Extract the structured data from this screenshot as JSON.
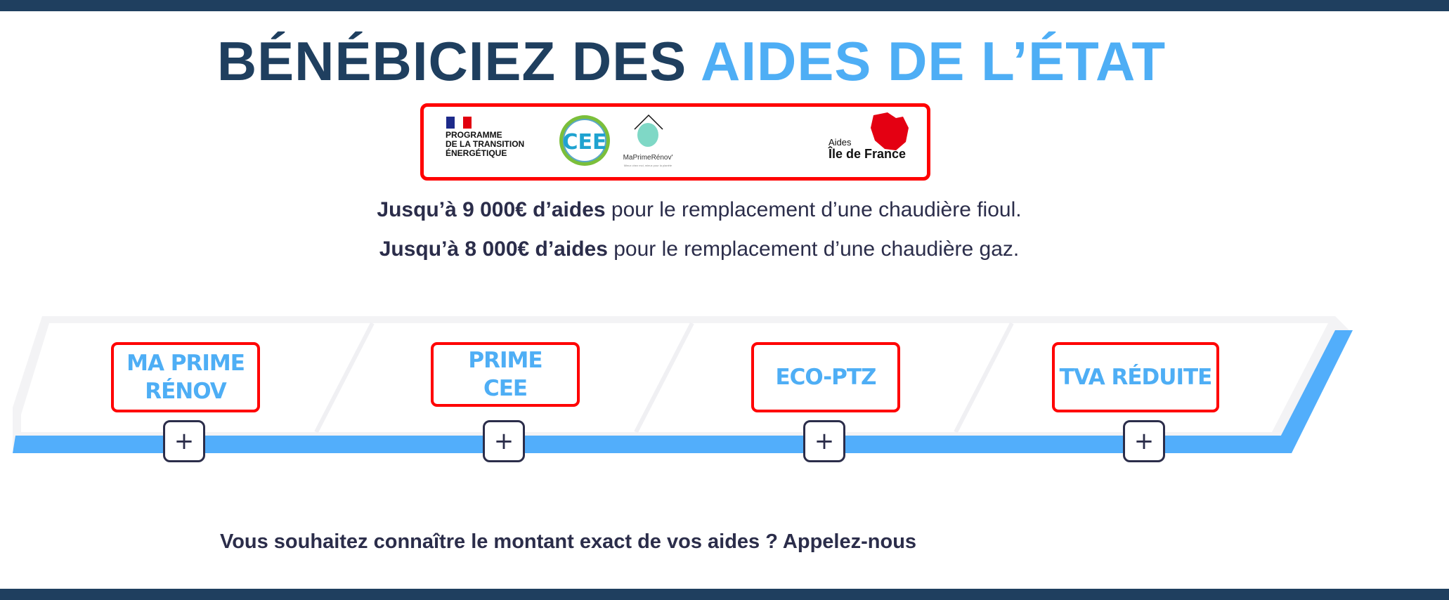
{
  "header": {
    "title_part1": "BÉNÉBICIEZ DES",
    "title_part2": "AIDES DE L’ÉTAT"
  },
  "logos": {
    "programme": [
      "PROGRAMME",
      "DE LA TRANSITION",
      "ÉNERGÉTIQUE"
    ],
    "cee": "CEE",
    "maprimerenov": "MaPrimeRénov'",
    "maprimerenov_tagline": "Mieux chez moi, mieux pour la planète",
    "idf_small": "Aides",
    "idf_big": "Île de France"
  },
  "intro": {
    "line1_bold": "Jusqu’à 9 000€ d’aides",
    "line1_rest": " pour le remplacement d’une chaudière fioul.",
    "line2_bold": "Jusqu’à 8 000€ d’aides",
    "line2_rest": " pour le remplacement d’une chaudière gaz."
  },
  "aids": [
    {
      "label": "MA PRIME RÉNOV",
      "button": "+"
    },
    {
      "label": "PRIME CEE",
      "button": "+"
    },
    {
      "label": "ECO-PTZ",
      "button": "+"
    },
    {
      "label": "TVA RÉDUITE",
      "button": "+"
    }
  ],
  "cta": "Vous souhaitez connaître le montant exact de vos aides ? Appelez-nous",
  "colors": {
    "navy": "#1f3f5f",
    "accent": "#4eaef5",
    "highlight_border": "#ff0000",
    "text": "#2b2d4a"
  }
}
